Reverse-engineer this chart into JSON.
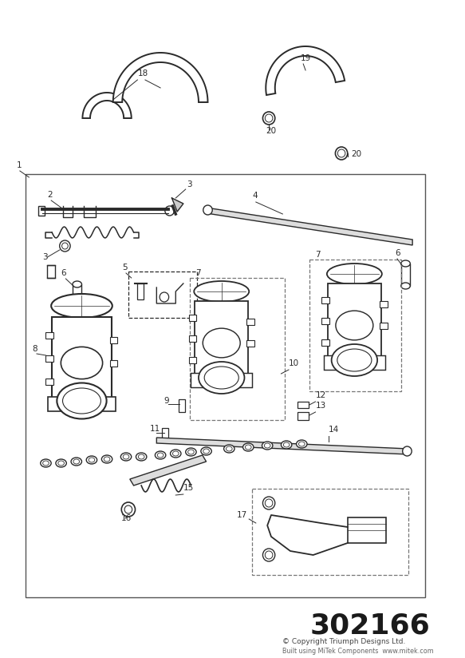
{
  "part_number": "302166",
  "copyright_line1": "© Copyright Triumph Designs Ltd.",
  "copyright_line2": "Built using MiTek Components  www.mitek.com",
  "bg_color": "#ffffff",
  "lc": "#2a2a2a",
  "label_fs": 7.5,
  "pn_fs": 26
}
